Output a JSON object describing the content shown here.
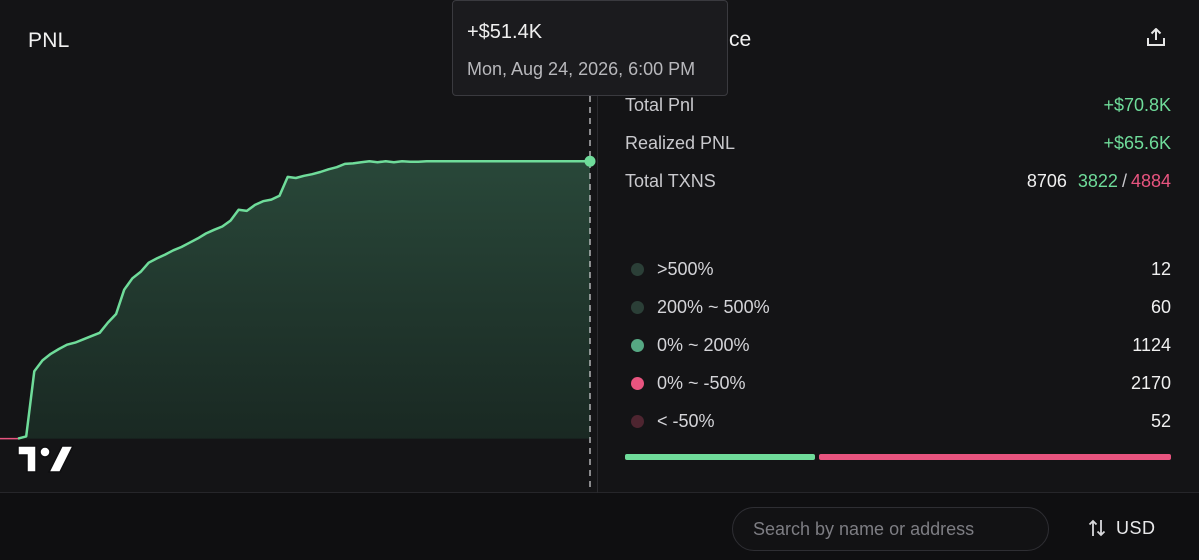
{
  "chart_panel": {
    "title": "PNL",
    "tooltip": {
      "value": "+$51.4K",
      "date": "Mon, Aug 24, 2026, 6:00 PM"
    }
  },
  "chart_data": {
    "type": "area",
    "title": "PNL",
    "xlabel": "",
    "ylabel": "",
    "grid": false,
    "x": [
      0,
      1,
      2,
      3,
      4,
      5,
      6,
      7,
      8,
      9,
      10,
      11,
      12,
      13,
      14,
      15,
      16,
      17,
      18,
      19,
      20,
      21,
      22,
      23,
      24,
      25,
      26,
      27,
      28,
      29,
      30,
      31,
      32,
      33,
      34,
      35,
      36,
      37,
      38,
      39,
      40,
      41,
      42,
      43,
      44,
      45,
      46,
      47,
      48,
      49,
      50,
      51,
      52,
      53,
      54,
      55,
      56,
      57,
      58,
      59,
      60,
      61,
      62,
      63,
      64,
      65,
      66,
      67,
      68,
      69,
      70
    ],
    "y": [
      0.0,
      0.4,
      12.5,
      14.5,
      15.7,
      16.6,
      17.4,
      17.8,
      18.4,
      19.0,
      19.6,
      21.5,
      23.1,
      27.6,
      29.7,
      30.9,
      32.6,
      33.4,
      34.1,
      34.9,
      35.5,
      36.3,
      37.1,
      38.0,
      38.7,
      39.3,
      40.4,
      42.4,
      42.2,
      43.3,
      44.0,
      44.3,
      45.0,
      48.5,
      48.3,
      48.7,
      49.0,
      49.4,
      49.9,
      50.3,
      50.9,
      51.0,
      51.2,
      51.4,
      51.2,
      51.4,
      51.2,
      51.4,
      51.3,
      51.3,
      51.4,
      51.4,
      51.4,
      51.4,
      51.4,
      51.4,
      51.4,
      51.4,
      51.4,
      51.4,
      51.4,
      51.4,
      51.4,
      51.4,
      51.4,
      51.4,
      51.4,
      51.4,
      51.4,
      51.4,
      51.4
    ],
    "ylim": [
      -1,
      52
    ],
    "line_color": "#6fdc9a",
    "fill_color": "#1e3a2d",
    "hover_point": {
      "x": 70,
      "y": 51.4
    }
  },
  "side_panel": {
    "title_partial": "ce",
    "stats": {
      "total_pnl_label": "Total Pnl",
      "total_pnl_value": "+$70.8K",
      "realized_pnl_label": "Realized PNL",
      "realized_pnl_value": "+$65.6K",
      "total_txns_label": "Total TXNS",
      "total_txns_value": "8706",
      "total_txns_buy": "3822",
      "total_txns_sep": "/",
      "total_txns_sell": "4884"
    },
    "distribution": [
      {
        "label": ">500%",
        "count": "12",
        "color": "#2b3f37"
      },
      {
        "label": "200% ~ 500%",
        "count": "60",
        "color": "#2b3f37"
      },
      {
        "label": "0% ~ 200%",
        "count": "1124",
        "color": "#56a883"
      },
      {
        "label": "0% ~ -50%",
        "count": "2170",
        "color": "#e8547f"
      },
      {
        "label": "< -50%",
        "count": "52",
        "color": "#4e2530"
      }
    ],
    "ratio": {
      "positive_fraction": 0.35
    },
    "colors": {
      "green": "#6fdc9a",
      "red": "#e8547f"
    }
  },
  "bottom_bar": {
    "search_placeholder": "Search by name or address",
    "currency_label": "USD"
  }
}
